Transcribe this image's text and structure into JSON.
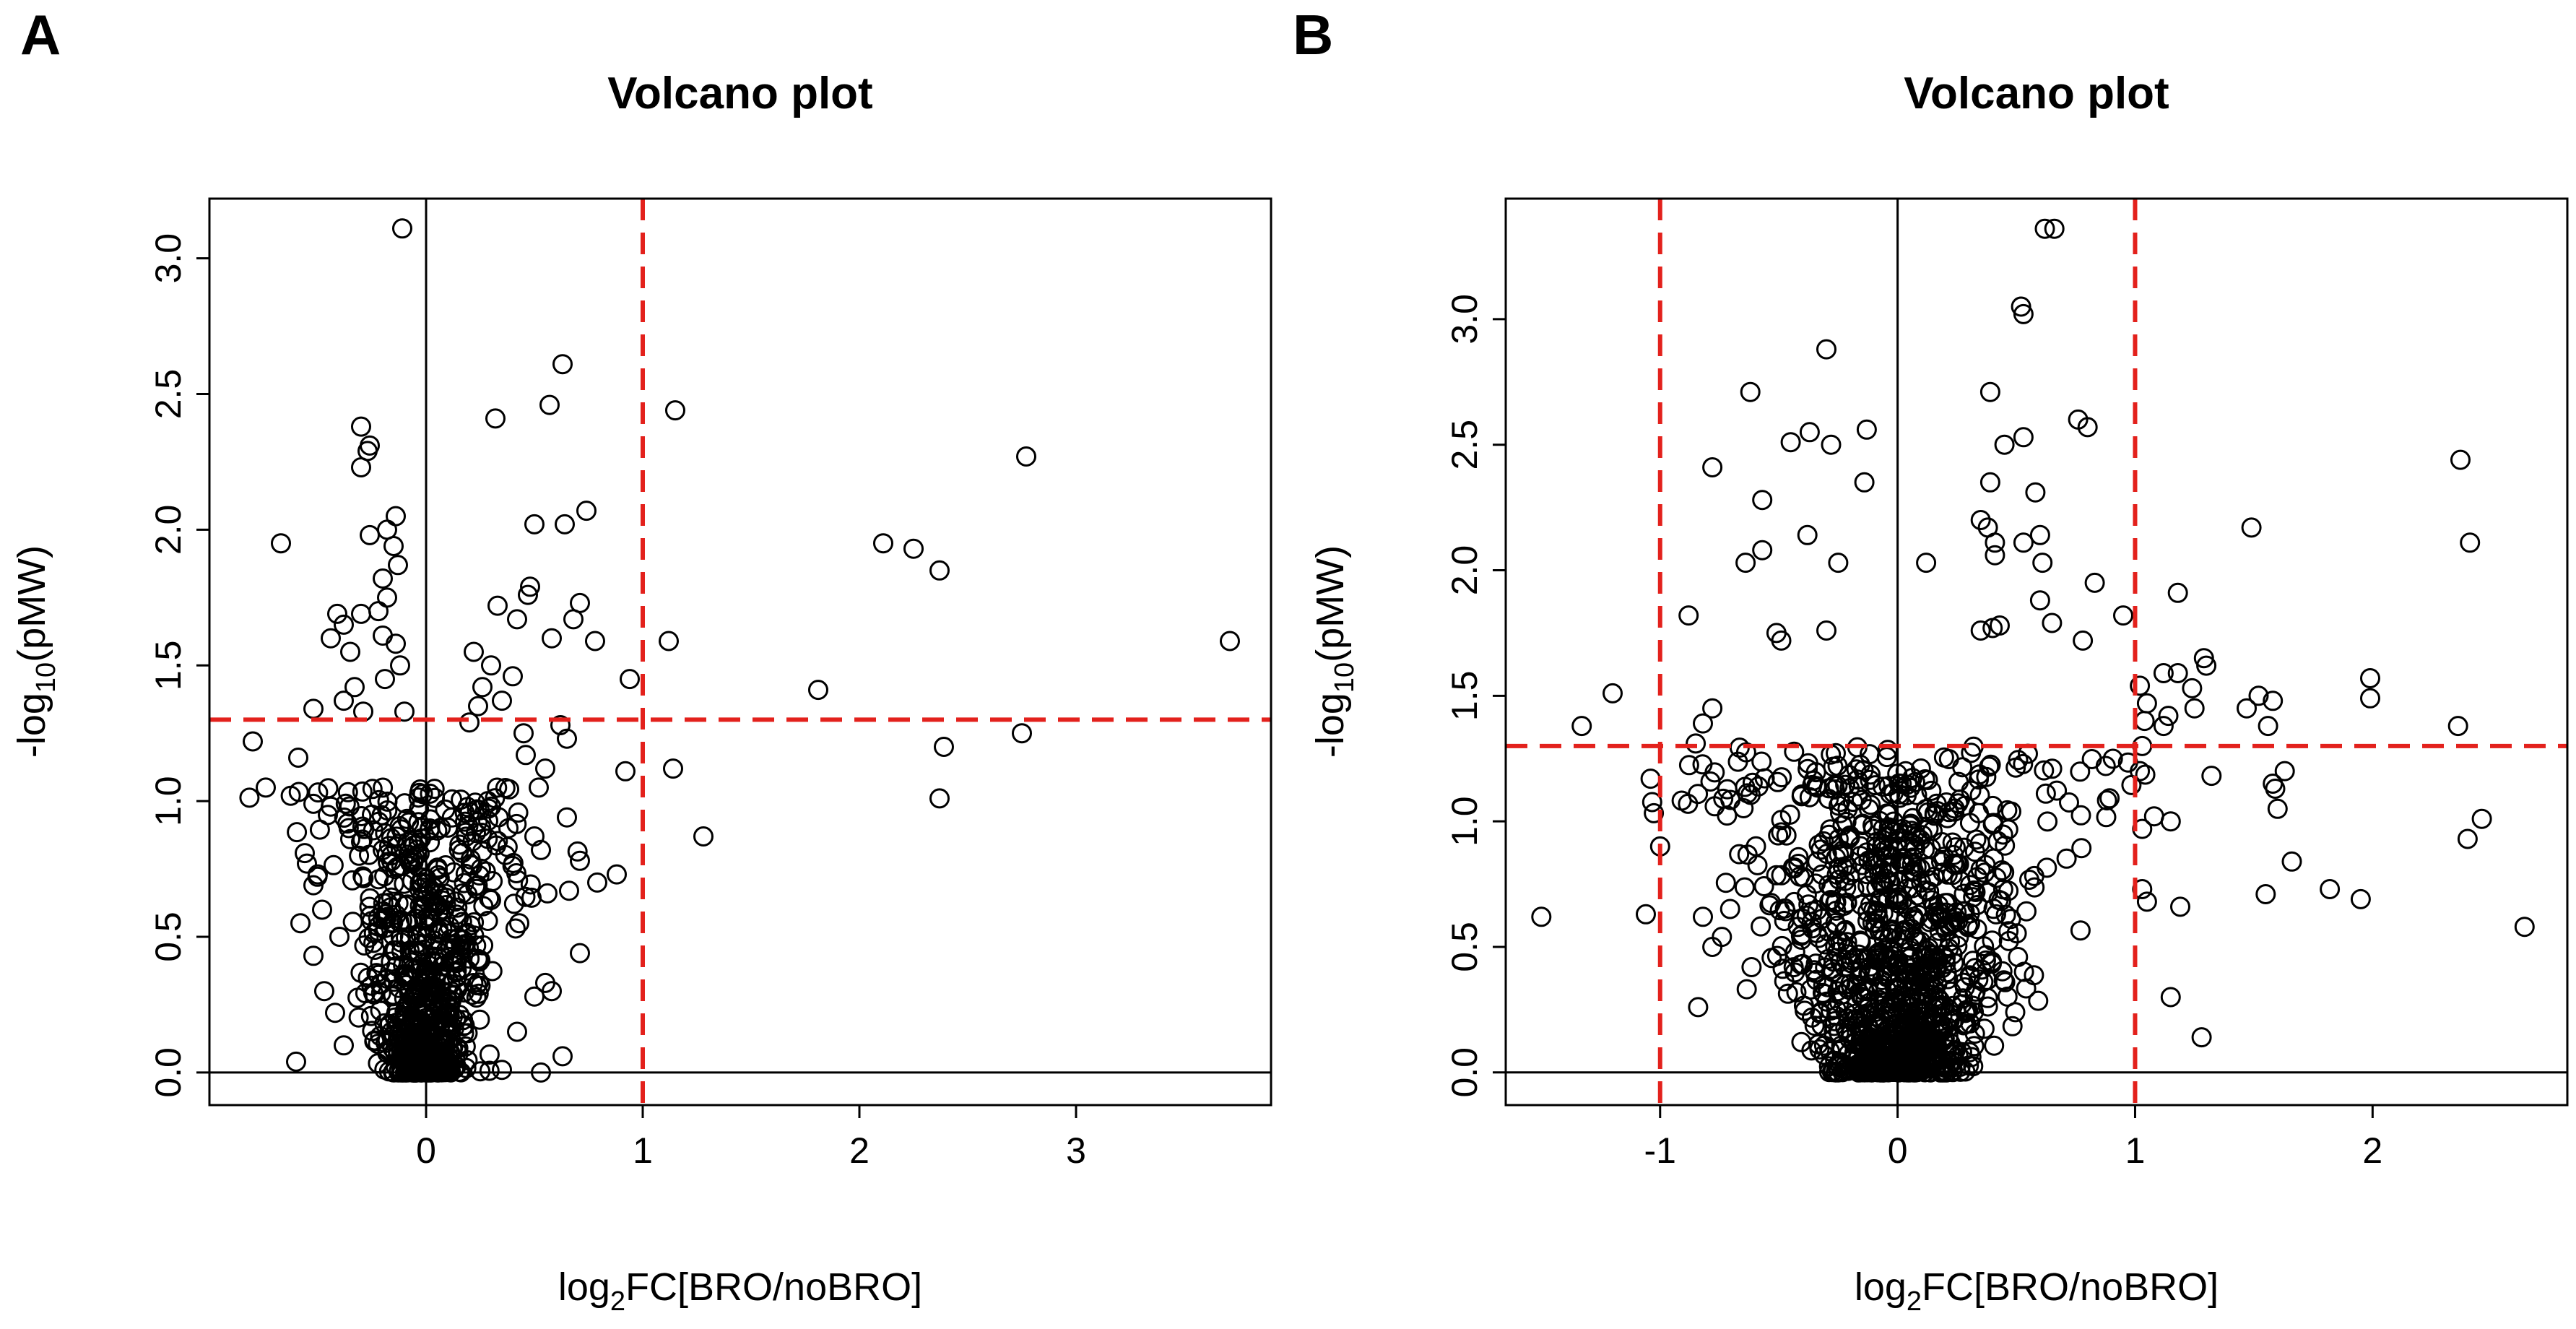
{
  "chart_data": [
    {
      "type": "scatter",
      "panel": "A",
      "title": "Volcano plot",
      "xlabel": {
        "prefix": "log",
        "sub": "2",
        "suffix": "FC[BRO/noBRO]"
      },
      "ylabel": {
        "prefix": "-log",
        "sub": "10",
        "suffix": "(pMW)"
      },
      "xlim": [
        -1.0,
        3.9
      ],
      "ylim": [
        -0.12,
        3.22
      ],
      "xticks": [
        0,
        1,
        2,
        3
      ],
      "xtick_labels": [
        "0",
        "1",
        "2",
        "3"
      ],
      "yticks": [
        0.0,
        0.5,
        1.0,
        1.5,
        2.0,
        2.5,
        3.0
      ],
      "ytick_labels": [
        "0.0",
        "0.5",
        "1.0",
        "1.5",
        "2.0",
        "2.5",
        "3.0"
      ],
      "hline_zero": 0,
      "vline_zero": 0,
      "threshold_hlines": [
        1.3
      ],
      "threshold_vlines": [
        1.0
      ],
      "points_shown": [
        [
          -0.11,
          3.11
        ],
        [
          -0.3,
          2.38
        ],
        [
          -0.26,
          2.31
        ],
        [
          -0.27,
          2.29
        ],
        [
          -0.3,
          2.23
        ],
        [
          -0.67,
          1.95
        ],
        [
          -0.14,
          2.05
        ],
        [
          -0.15,
          1.94
        ],
        [
          -0.26,
          1.98
        ],
        [
          -0.18,
          2.0
        ],
        [
          -0.13,
          1.87
        ],
        [
          -0.2,
          1.82
        ],
        [
          -0.18,
          1.75
        ],
        [
          -0.22,
          1.7
        ],
        [
          -0.3,
          1.69
        ],
        [
          -0.41,
          1.69
        ],
        [
          -0.38,
          1.65
        ],
        [
          -0.2,
          1.61
        ],
        [
          -0.14,
          1.58
        ],
        [
          -0.44,
          1.6
        ],
        [
          -0.35,
          1.55
        ],
        [
          -0.12,
          1.5
        ],
        [
          -0.19,
          1.45
        ],
        [
          -0.33,
          1.42
        ],
        [
          -0.38,
          1.37
        ],
        [
          -0.29,
          1.33
        ],
        [
          -0.52,
          1.34
        ],
        [
          -0.1,
          1.33
        ],
        [
          -0.8,
          1.22
        ],
        [
          -0.74,
          1.05
        ],
        [
          -0.59,
          1.16
        ],
        [
          -0.52,
          0.99
        ],
        [
          -0.44,
          0.98
        ],
        [
          -0.35,
          0.86
        ],
        [
          -0.55,
          0.77
        ],
        [
          -0.5,
          0.73
        ],
        [
          -0.52,
          0.69
        ],
        [
          -0.48,
          0.6
        ],
        [
          -0.58,
          0.55
        ],
        [
          -0.4,
          0.5
        ],
        [
          -0.52,
          0.43
        ],
        [
          -0.47,
          0.3
        ],
        [
          -0.42,
          0.22
        ],
        [
          -0.38,
          0.1
        ],
        [
          -0.6,
          0.04
        ],
        [
          -0.25,
          0.95
        ],
        [
          -0.3,
          0.85
        ],
        [
          -0.2,
          0.82
        ],
        [
          -0.16,
          0.8
        ],
        [
          0.32,
          2.41
        ],
        [
          0.63,
          2.61
        ],
        [
          0.57,
          2.46
        ],
        [
          0.5,
          2.02
        ],
        [
          0.64,
          2.02
        ],
        [
          0.74,
          2.07
        ],
        [
          0.48,
          1.79
        ],
        [
          0.47,
          1.76
        ],
        [
          0.71,
          1.73
        ],
        [
          0.58,
          1.6
        ],
        [
          0.78,
          1.59
        ],
        [
          0.68,
          1.67
        ],
        [
          0.42,
          1.67
        ],
        [
          0.33,
          1.72
        ],
        [
          0.22,
          1.55
        ],
        [
          0.3,
          1.5
        ],
        [
          0.4,
          1.46
        ],
        [
          0.26,
          1.42
        ],
        [
          0.35,
          1.37
        ],
        [
          0.24,
          1.35
        ],
        [
          0.62,
          1.28
        ],
        [
          0.65,
          1.23
        ],
        [
          0.55,
          1.12
        ],
        [
          0.46,
          1.17
        ],
        [
          0.52,
          1.05
        ],
        [
          0.65,
          0.94
        ],
        [
          0.5,
          0.87
        ],
        [
          0.53,
          0.82
        ],
        [
          0.71,
          0.78
        ],
        [
          0.79,
          0.7
        ],
        [
          0.88,
          0.73
        ],
        [
          0.66,
          0.67
        ],
        [
          0.56,
          0.66
        ],
        [
          0.43,
          0.55
        ],
        [
          0.71,
          0.44
        ],
        [
          0.55,
          0.33
        ],
        [
          0.58,
          0.3
        ],
        [
          0.5,
          0.28
        ],
        [
          0.42,
          0.15
        ],
        [
          0.63,
          0.06
        ],
        [
          0.53,
          0.0
        ],
        [
          0.35,
          0.01
        ],
        [
          0.2,
          1.29
        ],
        [
          0.45,
          1.25
        ],
        [
          0.3,
          0.98
        ],
        [
          0.38,
          0.9
        ],
        [
          0.94,
          1.45
        ],
        [
          1.15,
          2.44
        ],
        [
          1.12,
          1.59
        ],
        [
          0.92,
          1.11
        ],
        [
          1.14,
          1.12
        ],
        [
          1.28,
          0.87
        ],
        [
          1.81,
          1.41
        ],
        [
          2.11,
          1.95
        ],
        [
          2.25,
          1.93
        ],
        [
          2.37,
          1.85
        ],
        [
          2.39,
          1.2
        ],
        [
          2.37,
          1.01
        ],
        [
          2.77,
          2.27
        ],
        [
          2.75,
          1.25
        ],
        [
          3.71,
          1.59
        ]
      ],
      "cluster": {
        "count": 750,
        "x_center": 0.0,
        "x_spread": 0.18,
        "y_max": 1.05,
        "seed": 11
      }
    },
    {
      "type": "scatter",
      "panel": "B",
      "title": "Volcano plot",
      "xlabel": {
        "prefix": "log",
        "sub": "2",
        "suffix": "FC[BRO/noBRO]"
      },
      "ylabel": {
        "prefix": "-log",
        "sub": "10",
        "suffix": "(pMW)"
      },
      "xlim": [
        -1.65,
        2.82
      ],
      "ylim": [
        -0.13,
        3.48
      ],
      "xticks": [
        -1,
        0,
        1,
        2
      ],
      "xtick_labels": [
        "-1",
        "0",
        "1",
        "2"
      ],
      "yticks": [
        0.0,
        0.5,
        1.0,
        1.5,
        2.0,
        2.5,
        3.0
      ],
      "ytick_labels": [
        "0.0",
        "0.5",
        "1.0",
        "1.5",
        "2.0",
        "2.5",
        "3.0"
      ],
      "hline_zero": 0,
      "vline_zero": 0,
      "threshold_hlines": [
        1.3
      ],
      "threshold_vlines": [
        -1.0,
        1.0
      ],
      "points_shown": [
        [
          0.62,
          3.36
        ],
        [
          0.66,
          3.36
        ],
        [
          0.52,
          3.05
        ],
        [
          0.53,
          3.02
        ],
        [
          -0.3,
          2.88
        ],
        [
          -0.62,
          2.71
        ],
        [
          0.39,
          2.71
        ],
        [
          0.76,
          2.6
        ],
        [
          0.8,
          2.57
        ],
        [
          -0.37,
          2.55
        ],
        [
          -0.13,
          2.56
        ],
        [
          -0.45,
          2.51
        ],
        [
          -0.28,
          2.5
        ],
        [
          0.53,
          2.53
        ],
        [
          0.45,
          2.5
        ],
        [
          -0.78,
          2.41
        ],
        [
          -0.57,
          2.28
        ],
        [
          -0.14,
          2.35
        ],
        [
          0.39,
          2.35
        ],
        [
          0.58,
          2.31
        ],
        [
          -0.38,
          2.14
        ],
        [
          -0.57,
          2.08
        ],
        [
          -0.64,
          2.03
        ],
        [
          -0.25,
          2.03
        ],
        [
          0.12,
          2.03
        ],
        [
          0.35,
          2.2
        ],
        [
          0.38,
          2.17
        ],
        [
          0.41,
          2.11
        ],
        [
          0.53,
          2.11
        ],
        [
          0.6,
          2.14
        ],
        [
          0.41,
          2.06
        ],
        [
          0.61,
          2.03
        ],
        [
          0.6,
          1.88
        ],
        [
          -0.88,
          1.82
        ],
        [
          -0.51,
          1.75
        ],
        [
          -0.49,
          1.72
        ],
        [
          -0.3,
          1.76
        ],
        [
          0.43,
          1.78
        ],
        [
          0.4,
          1.77
        ],
        [
          0.35,
          1.76
        ],
        [
          0.65,
          1.79
        ],
        [
          0.78,
          1.72
        ],
        [
          0.95,
          1.82
        ],
        [
          0.83,
          1.95
        ],
        [
          -1.33,
          1.38
        ],
        [
          -1.2,
          1.51
        ],
        [
          -0.82,
          1.39
        ],
        [
          -0.78,
          1.45
        ],
        [
          -0.85,
          1.31
        ],
        [
          -1.04,
          1.17
        ],
        [
          -1.0,
          0.9
        ],
        [
          -0.77,
          1.06
        ],
        [
          -0.82,
          0.62
        ],
        [
          -1.06,
          0.63
        ],
        [
          -1.5,
          0.62
        ],
        [
          -0.74,
          0.54
        ],
        [
          -0.78,
          0.5
        ],
        [
          -0.84,
          0.26
        ],
        [
          1.02,
          1.54
        ],
        [
          1.05,
          1.47
        ],
        [
          1.04,
          1.4
        ],
        [
          1.12,
          1.59
        ],
        [
          1.18,
          1.59
        ],
        [
          1.24,
          1.53
        ],
        [
          1.25,
          1.45
        ],
        [
          1.29,
          1.65
        ],
        [
          1.3,
          1.62
        ],
        [
          1.12,
          1.38
        ],
        [
          1.14,
          1.42
        ],
        [
          1.18,
          1.91
        ],
        [
          1.47,
          1.45
        ],
        [
          1.49,
          2.17
        ],
        [
          1.52,
          1.5
        ],
        [
          1.58,
          1.48
        ],
        [
          1.56,
          1.38
        ],
        [
          1.58,
          1.15
        ],
        [
          1.6,
          1.05
        ],
        [
          1.63,
          1.2
        ],
        [
          1.59,
          1.13
        ],
        [
          1.66,
          0.84
        ],
        [
          1.55,
          0.71
        ],
        [
          1.82,
          0.73
        ],
        [
          1.95,
          0.69
        ],
        [
          1.99,
          1.57
        ],
        [
          1.99,
          1.49
        ],
        [
          2.37,
          2.44
        ],
        [
          2.41,
          2.11
        ],
        [
          2.36,
          1.38
        ],
        [
          2.4,
          0.93
        ],
        [
          2.46,
          1.01
        ],
        [
          2.64,
          0.58
        ],
        [
          1.02,
          1.2
        ],
        [
          1.03,
          0.97
        ],
        [
          1.08,
          1.02
        ],
        [
          1.15,
          1.0
        ],
        [
          1.05,
          0.68
        ],
        [
          1.19,
          0.66
        ],
        [
          1.03,
          0.73
        ],
        [
          1.15,
          0.3
        ],
        [
          1.28,
          0.14
        ],
        [
          1.03,
          1.3
        ]
      ],
      "cluster": {
        "count": 1200,
        "x_center": 0.0,
        "x_spread": 0.28,
        "y_max": 1.3,
        "seed": 29
      }
    }
  ]
}
